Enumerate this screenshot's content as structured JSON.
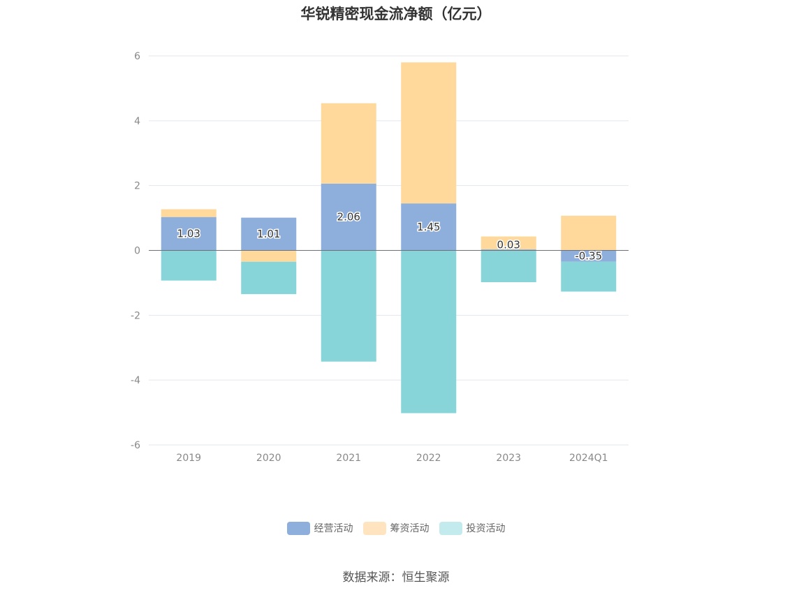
{
  "chart_data": {
    "type": "bar",
    "stacked": true,
    "title": "华锐精密现金流净额（亿元）",
    "categories": [
      "2019",
      "2020",
      "2021",
      "2022",
      "2023",
      "2024Q1"
    ],
    "series": [
      {
        "name": "经营活动",
        "color": "#8eaedc",
        "values": [
          1.03,
          1.01,
          2.06,
          1.45,
          0.03,
          -0.35
        ]
      },
      {
        "name": "筹资活动",
        "color": "#ffd99b",
        "values": [
          0.24,
          -0.35,
          2.48,
          4.35,
          0.4,
          1.07
        ]
      },
      {
        "name": "投资活动",
        "color": "#87d5d9",
        "values": [
          -0.93,
          -1.0,
          -3.43,
          -5.02,
          -0.98,
          -0.92
        ]
      }
    ],
    "data_labels": [
      "1.03",
      "1.01",
      "2.06",
      "1.45",
      "0.03",
      "-0.35"
    ],
    "yticks": [
      6,
      4,
      2,
      0,
      -2,
      -4,
      -6
    ],
    "ylim": [
      -6,
      6
    ],
    "grid": true,
    "legend_position": "bottom-center"
  },
  "legend": {
    "items": [
      {
        "label": "经营活动",
        "color": "#8eaedc"
      },
      {
        "label": "筹资活动",
        "color": "#ffe4bf"
      },
      {
        "label": "投资活动",
        "color": "#c3ebed"
      }
    ]
  },
  "source": "数据来源：恒生聚源"
}
